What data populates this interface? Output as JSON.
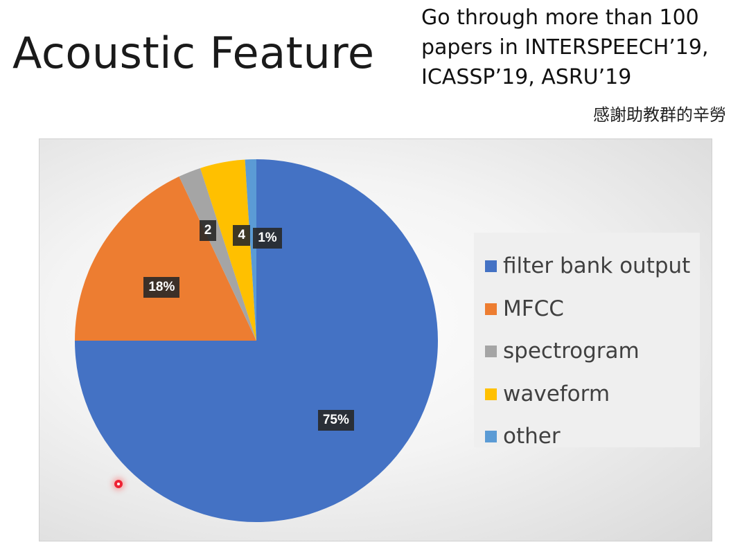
{
  "slide": {
    "title": "Acoustic Feature",
    "note_lines": [
      "Go through more than 100",
      "papers in INTERSPEECH’19,",
      "ICASSP’19, ASRU’19"
    ],
    "thanks": "感謝助教群的辛勞"
  },
  "chart_data": {
    "type": "pie",
    "title": "",
    "categories": [
      "filter bank output",
      "MFCC",
      "spectrogram",
      "waveform",
      "other"
    ],
    "values": [
      75,
      18,
      2,
      4,
      1
    ],
    "data_labels": [
      "75%",
      "18%",
      "2",
      "4",
      "1%"
    ],
    "colors": [
      "#4472C4",
      "#ED7D31",
      "#A5A5A5",
      "#FFC000",
      "#5B9BD5"
    ],
    "legend_position": "right"
  }
}
